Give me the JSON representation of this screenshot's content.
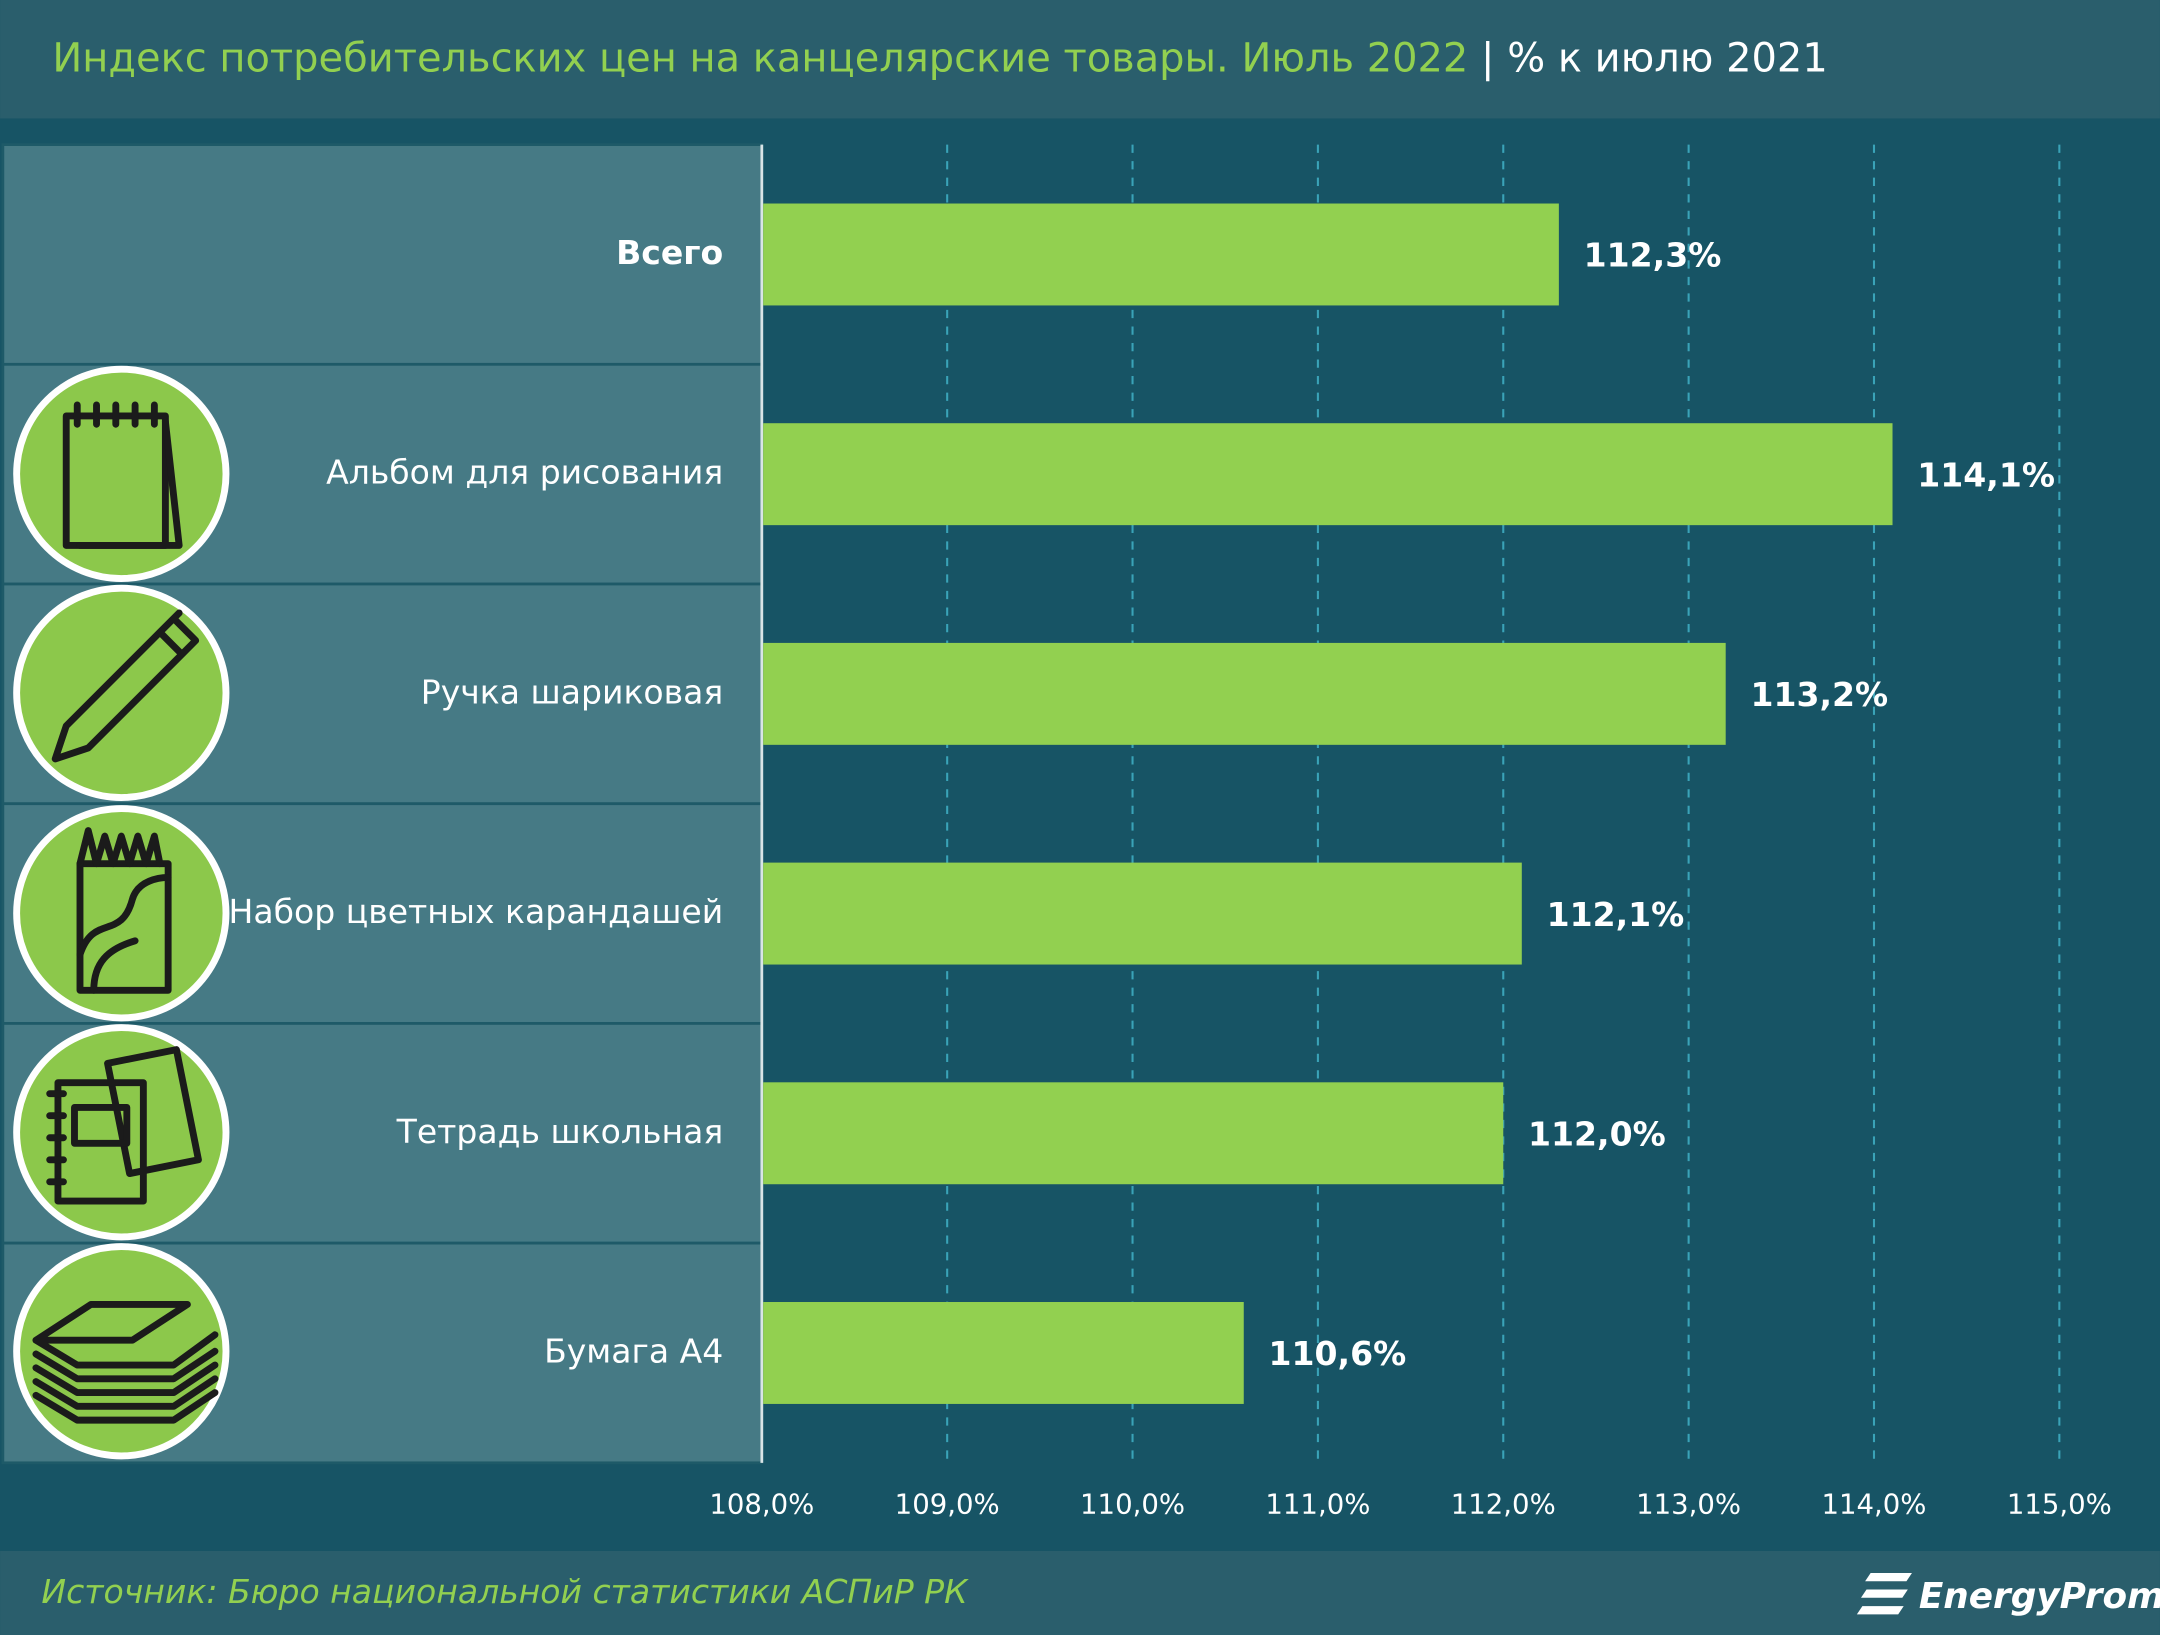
{
  "chart_data": {
    "type": "hbar",
    "title": "Индекс потребительских цен на канцелярские товары. Июль 2022",
    "subtitle": "% к июлю 2021",
    "categories": [
      "Всего",
      "Альбом для рисования",
      "Ручка шариковая",
      "Набор цветных карандашей",
      "Тетрадь школьная",
      "Бумага А4"
    ],
    "values": [
      112.3,
      114.1,
      113.2,
      112.1,
      112.0,
      110.6
    ],
    "value_labels": [
      "112,3%",
      "114,1%",
      "113,2%",
      "112,1%",
      "112,0%",
      "110,6%"
    ],
    "color": "#92d050",
    "xlim": [
      108,
      115
    ],
    "xticks": [
      {
        "value": 108,
        "label": "108,0%"
      },
      {
        "value": 109,
        "label": "109,0%"
      },
      {
        "value": 110,
        "label": "110,0%"
      },
      {
        "value": 111,
        "label": "111,0%"
      },
      {
        "value": 112,
        "label": "112,0%"
      },
      {
        "value": 113,
        "label": "113,0%"
      },
      {
        "value": 114,
        "label": "114,0%"
      },
      {
        "value": 115,
        "label": "115,0%"
      }
    ],
    "grid": true,
    "source": "Источник: Бюро национальной статистики АСПиР РК",
    "brand": "EnergyProm"
  }
}
